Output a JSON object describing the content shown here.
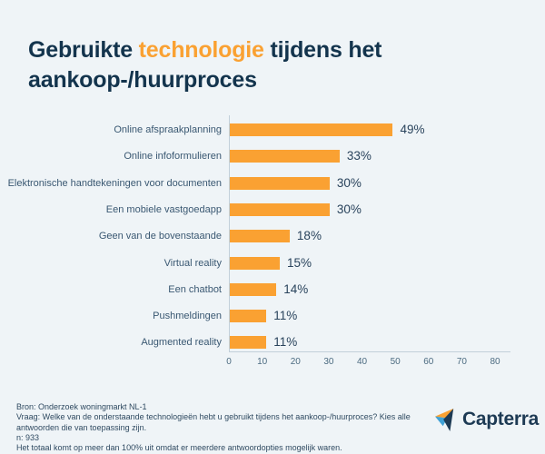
{
  "header": {
    "title_parts": [
      {
        "text": "Gebruikte ",
        "highlight": false
      },
      {
        "text": "technologie",
        "highlight": true
      },
      {
        "text": " tijdens het aankoop-/huurproces",
        "highlight": false
      }
    ]
  },
  "chart_data": {
    "type": "bar",
    "orientation": "horizontal",
    "title": "Gebruikte technologie tijdens het aankoop-/huurproces",
    "categories": [
      "Online afspraakplanning",
      "Online infoformulieren",
      "Elektronische handtekeningen voor documenten",
      "Een mobiele vastgoedapp",
      "Geen van de bovenstaande",
      "Virtual reality",
      "Een chatbot",
      "Pushmeldingen",
      "Augmented reality"
    ],
    "values": [
      49,
      33,
      30,
      30,
      18,
      15,
      14,
      11,
      11
    ],
    "value_labels": [
      "49%",
      "33%",
      "30%",
      "30%",
      "18%",
      "15%",
      "14%",
      "11%",
      "11%"
    ],
    "xlabel": "",
    "ylabel": "",
    "xlim": [
      0,
      80
    ],
    "xticks": [
      0,
      10,
      20,
      30,
      40,
      50,
      60,
      70,
      80
    ],
    "grid": false,
    "legend": false,
    "bar_color": "#FAA132"
  },
  "footer": {
    "lines": [
      "Bron: Onderzoek woningmarkt NL-1",
      "Vraag: Welke van de onderstaande technologieën hebt u gebruikt tijdens het aankoop-/huurproces? Kies alle antwoorden die van toepassing zijn.",
      "n: 933",
      "Het totaal komt op meer dan 100% uit omdat er meerdere antwoordopties mogelijk waren."
    ]
  },
  "logo": {
    "text": "Capterra"
  },
  "colors": {
    "background": "#EFF4F7",
    "title": "#13344D",
    "accent_orange": "#FAA132",
    "category_label": "#3A5872",
    "value_label": "#29435C",
    "tick_label": "#4C6B81",
    "axis_line": "#C2D0DA",
    "footer_text": "#2F4A61",
    "logo_navy": "#1D3A54",
    "logo_lightblue": "#3FA1D6"
  }
}
